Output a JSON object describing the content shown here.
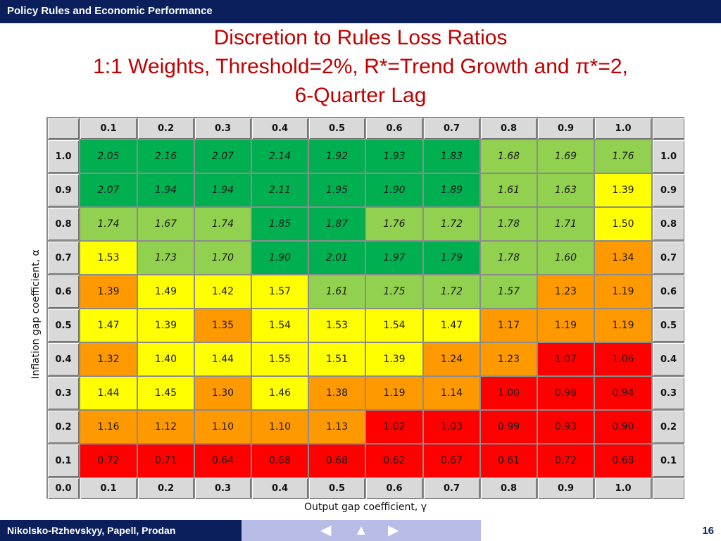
{
  "header": {
    "title": "Policy Rules and Economic Performance"
  },
  "slide": {
    "title_lines": [
      "Discretion to Rules Loss Ratios",
      "1:1 Weights, Threshold=2%, R*=Trend Growth and π*=2,",
      "6-Quarter Lag"
    ]
  },
  "axes": {
    "xlabel": "Output gap coefficient, γ",
    "ylabel": "Inflation gap coefficient, α"
  },
  "colors": {
    "dark_green": "#00b050",
    "light_green": "#92d050",
    "yellow": "#ffff00",
    "orange": "#ff9900",
    "red": "#ff0000",
    "header_gray": "#d9d9d9"
  },
  "table": {
    "corner_bottom_left": "0.0",
    "col_headers": [
      "0.1",
      "0.2",
      "0.3",
      "0.4",
      "0.5",
      "0.6",
      "0.7",
      "0.8",
      "0.9",
      "1.0"
    ],
    "rows": [
      {
        "label": "1.0",
        "values": [
          "2.05",
          "2.16",
          "2.07",
          "2.14",
          "1.92",
          "1.93",
          "1.83",
          "1.68",
          "1.69",
          "1.76"
        ],
        "colors": [
          "dark_green",
          "dark_green",
          "dark_green",
          "dark_green",
          "dark_green",
          "dark_green",
          "dark_green",
          "light_green",
          "light_green",
          "light_green"
        ]
      },
      {
        "label": "0.9",
        "values": [
          "2.07",
          "1.94",
          "1.94",
          "2.11",
          "1.95",
          "1.90",
          "1.89",
          "1.61",
          "1.63",
          "1.39"
        ],
        "colors": [
          "dark_green",
          "dark_green",
          "dark_green",
          "dark_green",
          "dark_green",
          "dark_green",
          "dark_green",
          "light_green",
          "light_green",
          "yellow"
        ]
      },
      {
        "label": "0.8",
        "values": [
          "1.74",
          "1.67",
          "1.74",
          "1.85",
          "1.87",
          "1.76",
          "1.72",
          "1.78",
          "1.71",
          "1.50"
        ],
        "colors": [
          "light_green",
          "light_green",
          "light_green",
          "dark_green",
          "dark_green",
          "light_green",
          "light_green",
          "light_green",
          "light_green",
          "yellow"
        ]
      },
      {
        "label": "0.7",
        "values": [
          "1.53",
          "1.73",
          "1.70",
          "1.90",
          "2.01",
          "1.97",
          "1.79",
          "1.78",
          "1.60",
          "1.34"
        ],
        "colors": [
          "yellow",
          "light_green",
          "light_green",
          "dark_green",
          "dark_green",
          "dark_green",
          "dark_green",
          "light_green",
          "light_green",
          "orange"
        ]
      },
      {
        "label": "0.6",
        "values": [
          "1.39",
          "1.49",
          "1.42",
          "1.57",
          "1.61",
          "1.75",
          "1.72",
          "1.57",
          "1.23",
          "1.19"
        ],
        "colors": [
          "orange",
          "yellow",
          "yellow",
          "yellow",
          "light_green",
          "light_green",
          "light_green",
          "light_green",
          "orange",
          "orange"
        ]
      },
      {
        "label": "0.5",
        "values": [
          "1.47",
          "1.39",
          "1.35",
          "1.54",
          "1.53",
          "1.54",
          "1.47",
          "1.17",
          "1.19",
          "1.19"
        ],
        "colors": [
          "yellow",
          "yellow",
          "orange",
          "yellow",
          "yellow",
          "yellow",
          "yellow",
          "orange",
          "orange",
          "orange"
        ]
      },
      {
        "label": "0.4",
        "values": [
          "1.32",
          "1.40",
          "1.44",
          "1.55",
          "1.51",
          "1.39",
          "1.24",
          "1.23",
          "1.07",
          "1.06"
        ],
        "colors": [
          "orange",
          "yellow",
          "yellow",
          "yellow",
          "yellow",
          "yellow",
          "orange",
          "orange",
          "red",
          "red"
        ]
      },
      {
        "label": "0.3",
        "values": [
          "1.44",
          "1.45",
          "1.30",
          "1.46",
          "1.38",
          "1.19",
          "1.14",
          "1.00",
          "0.98",
          "0.94"
        ],
        "colors": [
          "yellow",
          "yellow",
          "orange",
          "yellow",
          "orange",
          "orange",
          "orange",
          "red",
          "red",
          "red"
        ]
      },
      {
        "label": "0.2",
        "values": [
          "1.16",
          "1.12",
          "1.10",
          "1.10",
          "1.13",
          "1.02",
          "1.03",
          "0.99",
          "0.93",
          "0.90"
        ],
        "colors": [
          "orange",
          "orange",
          "orange",
          "orange",
          "orange",
          "red",
          "red",
          "red",
          "red",
          "red"
        ]
      },
      {
        "label": "0.1",
        "values": [
          "0.72",
          "0.71",
          "0.64",
          "0.68",
          "0.68",
          "0.62",
          "0.67",
          "0.61",
          "0.72",
          "0.68"
        ],
        "colors": [
          "red",
          "red",
          "red",
          "red",
          "red",
          "red",
          "red",
          "red",
          "red",
          "red"
        ]
      }
    ]
  },
  "footer": {
    "authors": "Nikolsko-Rzhevskyy, Papell, Prodan",
    "page": "16",
    "nav_icons": [
      "arrow-left-icon",
      "home-icon",
      "arrow-right-icon"
    ]
  }
}
